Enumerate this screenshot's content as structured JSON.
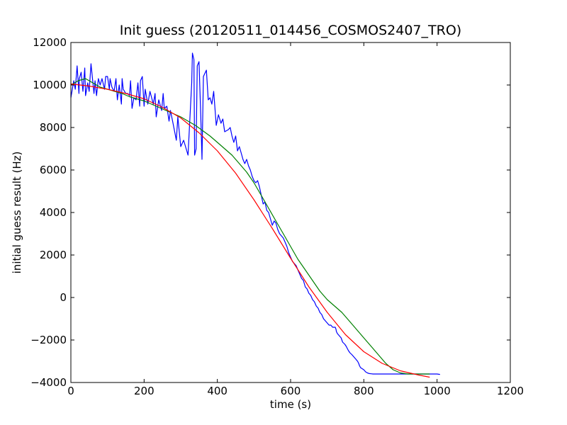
{
  "chart_data": {
    "type": "line",
    "title": "Init guess (20120511_014456_COSMOS2407_TRO)",
    "xlabel": "time (s)",
    "ylabel": "initial guess result (Hz)",
    "xlim": [
      0,
      1200
    ],
    "ylim": [
      -4000,
      12000
    ],
    "xticks": [
      0,
      200,
      400,
      600,
      800,
      1000,
      1200
    ],
    "yticks": [
      -4000,
      -2000,
      0,
      2000,
      4000,
      6000,
      8000,
      10000,
      12000
    ],
    "xtick_labels": [
      "0",
      "200",
      "400",
      "600",
      "800",
      "1000",
      "1200"
    ],
    "ytick_labels": [
      "−4000",
      "−2000",
      "0",
      "2000",
      "4000",
      "6000",
      "8000",
      "10000",
      "12000"
    ],
    "grid": false,
    "legend": "none",
    "series": [
      {
        "color": "#0000ff",
        "x": [
          0,
          8,
          12,
          17,
          22,
          23,
          28,
          33,
          38,
          40,
          46,
          50,
          55,
          63,
          66,
          70,
          75,
          80,
          85,
          92,
          95,
          100,
          105,
          107,
          112,
          118,
          123,
          127,
          132,
          138,
          140,
          143,
          150,
          155,
          160,
          163,
          167,
          172,
          178,
          183,
          188,
          190,
          195,
          200,
          203,
          210,
          216,
          225,
          230,
          233,
          240,
          248,
          252,
          255,
          262,
          268,
          272,
          280,
          288,
          292,
          300,
          308,
          320,
          330,
          332,
          336,
          338,
          342,
          345,
          350,
          355,
          358,
          362,
          370,
          375,
          380,
          385,
          390,
          397,
          403,
          410,
          415,
          420,
          430,
          435,
          440,
          445,
          450,
          455,
          460,
          465,
          470,
          475,
          480,
          485,
          490,
          495,
          500,
          505,
          510,
          515,
          520,
          525,
          530,
          535,
          540,
          545,
          550,
          555,
          560,
          565,
          570,
          575,
          580,
          585,
          590,
          595,
          600,
          605,
          610,
          615,
          620,
          625,
          630,
          635,
          640,
          645,
          650,
          655,
          660,
          665,
          670,
          675,
          680,
          685,
          690,
          695,
          700,
          705,
          710,
          715,
          720,
          722,
          724,
          725,
          728,
          733,
          738,
          742,
          748,
          752,
          758,
          762,
          768,
          773,
          778,
          783,
          786,
          788,
          791,
          800,
          805,
          810,
          815,
          820,
          825,
          830,
          835,
          840,
          843,
          845,
          848,
          852,
          858,
          870,
          880,
          885,
          890,
          900,
          905,
          910,
          920,
          930,
          950,
          970,
          990,
          1000,
          1008
        ],
        "y": [
          9400,
          10200,
          9800,
          10900,
          9600,
          10300,
          10600,
          9700,
          10800,
          9500,
          10100,
          9700,
          11000,
          9600,
          10200,
          9500,
          10300,
          10000,
          10300,
          9800,
          10400,
          10400,
          9800,
          10300,
          9900,
          9700,
          10300,
          9300,
          10000,
          9100,
          10300,
          9800,
          9600,
          9600,
          9500,
          10200,
          8900,
          9400,
          9300,
          10100,
          9000,
          10200,
          10400,
          9000,
          9800,
          9100,
          9700,
          9100,
          9600,
          8500,
          9300,
          8800,
          9600,
          8900,
          9000,
          8300,
          8800,
          8100,
          7400,
          8500,
          7100,
          7400,
          6700,
          10100,
          11500,
          11200,
          6700,
          7000,
          10900,
          11100,
          8400,
          6500,
          10400,
          10700,
          9300,
          9400,
          9100,
          9700,
          8100,
          8600,
          8200,
          8400,
          7800,
          7900,
          8000,
          7600,
          7300,
          7600,
          6900,
          7100,
          6800,
          6500,
          6300,
          6500,
          6200,
          6000,
          5700,
          5500,
          5400,
          5500,
          5200,
          4800,
          4400,
          4500,
          4100,
          4000,
          3700,
          3400,
          3600,
          3500,
          3200,
          3000,
          2900,
          2800,
          2600,
          2400,
          2100,
          1900,
          1700,
          1600,
          1500,
          1300,
          1100,
          900,
          800,
          500,
          400,
          200,
          100,
          -100,
          -200,
          -400,
          -500,
          -700,
          -800,
          -1000,
          -1100,
          -1200,
          -1300,
          -1300,
          -1400,
          -1400,
          -1400,
          -1500,
          -1600,
          -1700,
          -1800,
          -1900,
          -2100,
          -2200,
          -2300,
          -2500,
          -2600,
          -2700,
          -2800,
          -2900,
          -3000,
          -3100,
          -3200,
          -3300,
          -3400,
          -3500,
          -3550,
          -3580,
          -3590,
          -3600,
          -3600,
          -3600,
          -3600,
          -3600,
          -3600,
          -3600,
          -3600,
          -3600,
          -3600,
          -3600,
          -3600,
          -3600,
          -3600,
          -3600,
          -3600,
          -3600,
          -3600,
          -3600,
          -3600,
          -3600,
          -3600,
          -3620
        ]
      },
      {
        "color": "#008000",
        "x": [
          0,
          20,
          40,
          60,
          80,
          100,
          120,
          140,
          160,
          180,
          200,
          220,
          240,
          260,
          280,
          300,
          320,
          340,
          360,
          380,
          400,
          420,
          440,
          460,
          480,
          500,
          520,
          540,
          560,
          580,
          600,
          620,
          640,
          660,
          680,
          700,
          720,
          740,
          760,
          780,
          800,
          820,
          840,
          860,
          880,
          900,
          920,
          940,
          960,
          980
        ],
        "y": [
          10000,
          10200,
          10300,
          10100,
          9900,
          9800,
          9700,
          9600,
          9450,
          9350,
          9250,
          9100,
          8950,
          8800,
          8650,
          8500,
          8300,
          8100,
          7850,
          7600,
          7300,
          7000,
          6700,
          6300,
          5900,
          5400,
          4800,
          4200,
          3600,
          3000,
          2400,
          1800,
          1300,
          800,
          300,
          -100,
          -400,
          -700,
          -1100,
          -1500,
          -1900,
          -2300,
          -2700,
          -3100,
          -3400,
          -3550,
          -3600,
          -3600,
          -3600,
          -3600
        ]
      },
      {
        "color": "#ff0000",
        "x": [
          0,
          50,
          100,
          150,
          200,
          250,
          300,
          350,
          400,
          450,
          500,
          550,
          600,
          650,
          700,
          750,
          800,
          850,
          900,
          950,
          980
        ],
        "y": [
          10050,
          9950,
          9800,
          9600,
          9350,
          8950,
          8450,
          7750,
          6900,
          5850,
          4600,
          3250,
          1850,
          500,
          -700,
          -1750,
          -2550,
          -3100,
          -3450,
          -3650,
          -3750
        ]
      }
    ]
  }
}
